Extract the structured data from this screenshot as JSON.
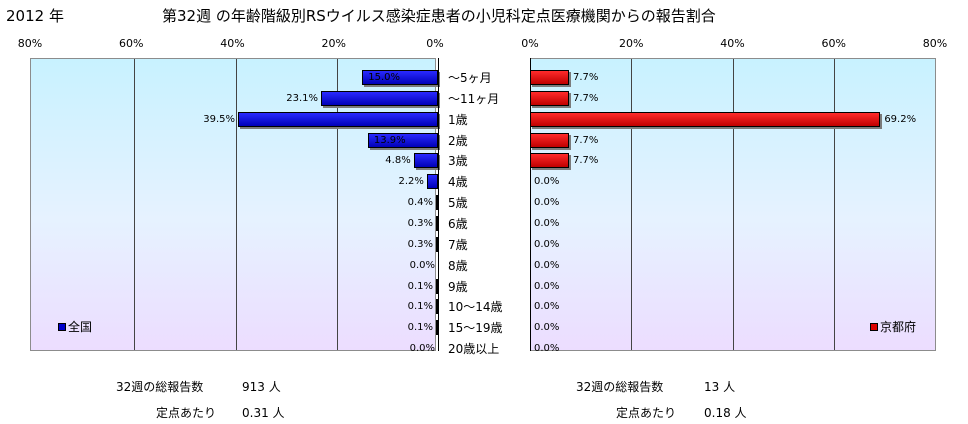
{
  "title": {
    "year": "2012 年",
    "main": "第32週 の年齢階級別RSウイルス感染症患者の小児科定点医療機関からの報告割合"
  },
  "colors": {
    "national": "#0000cc",
    "kyoto": "#dd0000",
    "panel_top": "#c8f2ff",
    "panel_bottom": "#ecddff"
  },
  "chart_data": [
    {
      "type": "bar",
      "orientation": "horizontal-reversed",
      "legend": "全国",
      "legend_position": "bottom-left",
      "xlim": [
        0,
        80
      ],
      "ticks": [
        "80%",
        "60%",
        "40%",
        "20%",
        "0%"
      ],
      "categories": [
        "～5ヶ月",
        "～11ヶ月",
        "1歳",
        "2歳",
        "3歳",
        "4歳",
        "5歳",
        "6歳",
        "7歳",
        "8歳",
        "9歳",
        "10～14歳",
        "15～19歳",
        "20歳以上"
      ],
      "values": [
        15.0,
        23.1,
        39.5,
        13.9,
        4.8,
        2.2,
        0.4,
        0.3,
        0.3,
        0.0,
        0.1,
        0.1,
        0.1,
        0.0
      ],
      "labels": [
        "15.0%",
        "23.1%",
        "39.5%",
        "13.9%",
        "4.8%",
        "2.2%",
        "0.4%",
        "0.3%",
        "0.3%",
        "0.0%",
        "0.1%",
        "0.1%",
        "0.1%",
        "0.0%"
      ]
    },
    {
      "type": "bar",
      "orientation": "horizontal",
      "legend": "京都府",
      "legend_position": "bottom-right",
      "xlim": [
        0,
        80
      ],
      "ticks": [
        "0%",
        "20%",
        "40%",
        "60%",
        "80%"
      ],
      "categories": [
        "～5ヶ月",
        "～11ヶ月",
        "1歳",
        "2歳",
        "3歳",
        "4歳",
        "5歳",
        "6歳",
        "7歳",
        "8歳",
        "9歳",
        "10～14歳",
        "15～19歳",
        "20歳以上"
      ],
      "values": [
        7.7,
        7.7,
        69.2,
        7.7,
        7.7,
        0.0,
        0.0,
        0.0,
        0.0,
        0.0,
        0.0,
        0.0,
        0.0,
        0.0
      ],
      "labels": [
        "7.7%",
        "7.7%",
        "69.2%",
        "7.7%",
        "7.7%",
        "0.0%",
        "0.0%",
        "0.0%",
        "0.0%",
        "0.0%",
        "0.0%",
        "0.0%",
        "0.0%",
        "0.0%"
      ]
    }
  ],
  "footer": {
    "national": {
      "total_label": "32週の総報告数",
      "total_value": "913 人",
      "per_label": "定点あたり",
      "per_value": "0.31 人"
    },
    "kyoto": {
      "total_label": "32週の総報告数",
      "total_value": "13 人",
      "per_label": "定点あたり",
      "per_value": "0.18 人"
    }
  }
}
